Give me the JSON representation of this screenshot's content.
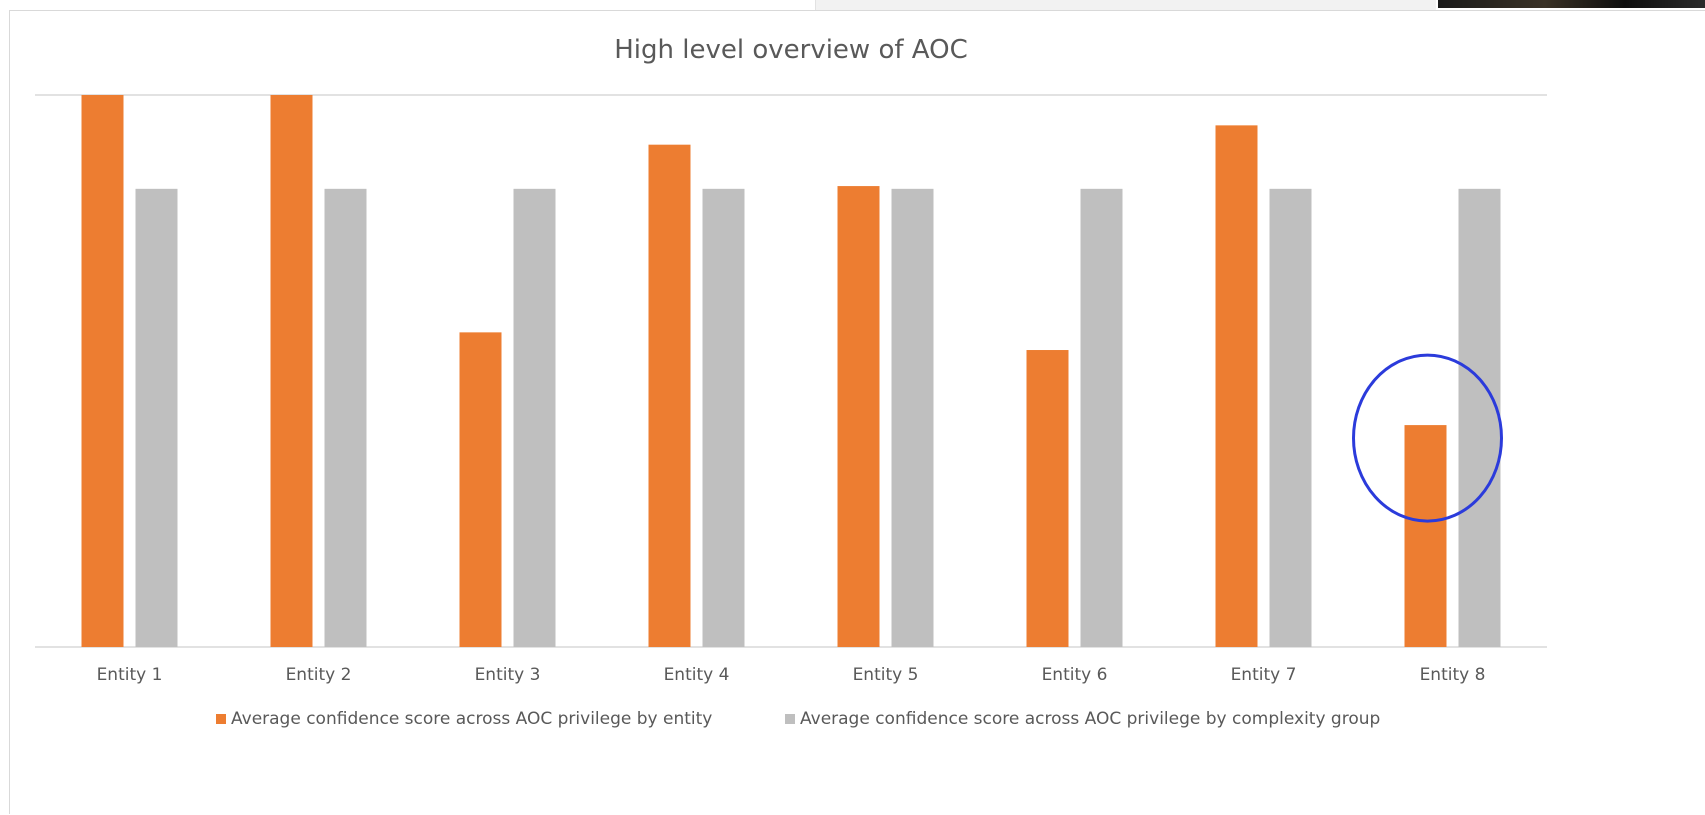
{
  "chart_data": {
    "type": "bar",
    "title": "High level overview of AOC",
    "categories": [
      "Entity 1",
      "Entity 2",
      "Entity 3",
      "Entity 4",
      "Entity 5",
      "Entity 6",
      "Entity 7",
      "Entity 8"
    ],
    "series": [
      {
        "name": "Average confidence score across AOC privilege by entity",
        "color": "#ED7D31",
        "values": [
          1.0,
          1.0,
          0.57,
          0.91,
          0.835,
          0.538,
          0.945,
          0.402
        ]
      },
      {
        "name": "Average confidence score across AOC privilege by complexity group",
        "color": "#BFBFBF",
        "values": [
          0.83,
          0.83,
          0.83,
          0.83,
          0.83,
          0.83,
          0.83,
          0.83
        ]
      }
    ],
    "ylim": [
      0,
      1.0
    ],
    "y_axis_labels_visible": false,
    "grid": true,
    "legend_position": "bottom",
    "annotation": {
      "type": "circle",
      "target_category": "Entity 8",
      "color": "#2B3BDB"
    }
  }
}
